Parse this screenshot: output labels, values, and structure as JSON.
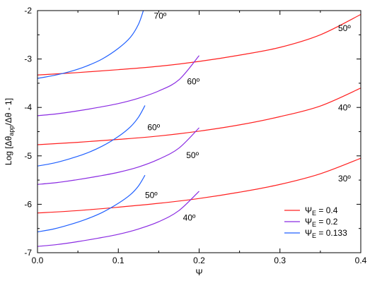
{
  "chart_data": {
    "type": "line",
    "xlabel": "Ψ",
    "ylabel": {
      "prefix": "Log [Δθ",
      "sub": "app",
      "suffix": "/Δθ - 1]"
    },
    "xlim": [
      0.0,
      0.4
    ],
    "ylim": [
      -7,
      -2
    ],
    "xticks": [
      {
        "value": 0.0,
        "label": "0.0"
      },
      {
        "value": 0.1,
        "label": "0.1"
      },
      {
        "value": 0.2,
        "label": "0.2"
      },
      {
        "value": 0.3,
        "label": "0.3"
      },
      {
        "value": 0.4,
        "label": "0.4"
      }
    ],
    "yticks": [
      {
        "value": -7,
        "label": "-7"
      },
      {
        "value": -6,
        "label": "-6"
      },
      {
        "value": -5,
        "label": "-5"
      },
      {
        "value": -4,
        "label": "-4"
      },
      {
        "value": -3,
        "label": "-3"
      },
      {
        "value": -2,
        "label": "-2"
      }
    ],
    "grid": false,
    "legend": {
      "position": "bottom-right",
      "entries": [
        {
          "symbol": "Ψ",
          "sub": "E",
          "text": " = 0.4",
          "color": "#ff2020"
        },
        {
          "symbol": "Ψ",
          "sub": "E",
          "text": " = 0.2",
          "color": "#8a2be2"
        },
        {
          "symbol": "Ψ",
          "sub": "E",
          "text": " = 0.133",
          "color": "#2060ff"
        }
      ]
    },
    "series": [
      {
        "group": "ΨE = 0.4",
        "label": "50º",
        "color": "#ff2020",
        "points": [
          [
            0.0,
            -3.33
          ],
          [
            0.05,
            -3.28
          ],
          [
            0.1,
            -3.22
          ],
          [
            0.15,
            -3.15
          ],
          [
            0.2,
            -3.05
          ],
          [
            0.25,
            -2.92
          ],
          [
            0.3,
            -2.76
          ],
          [
            0.35,
            -2.5
          ],
          [
            0.4,
            -2.08
          ]
        ]
      },
      {
        "group": "ΨE = 0.4",
        "label": "40º",
        "color": "#ff2020",
        "points": [
          [
            0.0,
            -4.77
          ],
          [
            0.05,
            -4.72
          ],
          [
            0.1,
            -4.66
          ],
          [
            0.15,
            -4.59
          ],
          [
            0.2,
            -4.49
          ],
          [
            0.25,
            -4.36
          ],
          [
            0.3,
            -4.19
          ],
          [
            0.35,
            -3.97
          ],
          [
            0.4,
            -3.6
          ]
        ]
      },
      {
        "group": "ΨE = 0.4",
        "label": "30º",
        "color": "#ff2020",
        "points": [
          [
            0.0,
            -6.18
          ],
          [
            0.05,
            -6.13
          ],
          [
            0.1,
            -6.06
          ],
          [
            0.15,
            -5.98
          ],
          [
            0.2,
            -5.88
          ],
          [
            0.25,
            -5.75
          ],
          [
            0.3,
            -5.59
          ],
          [
            0.35,
            -5.37
          ],
          [
            0.4,
            -5.05
          ]
        ]
      },
      {
        "group": "ΨE = 0.2",
        "label": "60º",
        "color": "#8a2be2",
        "points": [
          [
            0.0,
            -4.17
          ],
          [
            0.025,
            -4.13
          ],
          [
            0.05,
            -4.07
          ],
          [
            0.075,
            -4.0
          ],
          [
            0.1,
            -3.92
          ],
          [
            0.125,
            -3.81
          ],
          [
            0.15,
            -3.66
          ],
          [
            0.175,
            -3.43
          ],
          [
            0.2,
            -2.93
          ]
        ]
      },
      {
        "group": "ΨE = 0.2",
        "label": "50º",
        "color": "#8a2be2",
        "points": [
          [
            0.0,
            -5.59
          ],
          [
            0.025,
            -5.55
          ],
          [
            0.05,
            -5.49
          ],
          [
            0.075,
            -5.42
          ],
          [
            0.1,
            -5.34
          ],
          [
            0.125,
            -5.23
          ],
          [
            0.15,
            -5.07
          ],
          [
            0.175,
            -4.84
          ],
          [
            0.2,
            -4.42
          ]
        ]
      },
      {
        "group": "ΨE = 0.2",
        "label": "40º",
        "color": "#8a2be2",
        "points": [
          [
            0.0,
            -6.87
          ],
          [
            0.025,
            -6.83
          ],
          [
            0.05,
            -6.77
          ],
          [
            0.075,
            -6.7
          ],
          [
            0.1,
            -6.62
          ],
          [
            0.125,
            -6.51
          ],
          [
            0.15,
            -6.36
          ],
          [
            0.175,
            -6.13
          ],
          [
            0.2,
            -5.73
          ]
        ]
      },
      {
        "group": "ΨE = 0.133",
        "label": "70º",
        "color": "#2060ff",
        "points": [
          [
            0.0,
            -3.4
          ],
          [
            0.02,
            -3.34
          ],
          [
            0.04,
            -3.26
          ],
          [
            0.06,
            -3.15
          ],
          [
            0.08,
            -3.0
          ],
          [
            0.1,
            -2.78
          ],
          [
            0.115,
            -2.55
          ],
          [
            0.125,
            -2.28
          ],
          [
            0.131,
            -2.0
          ]
        ]
      },
      {
        "group": "ΨE = 0.133",
        "label": "60º",
        "color": "#2060ff",
        "points": [
          [
            0.0,
            -5.21
          ],
          [
            0.02,
            -5.15
          ],
          [
            0.04,
            -5.06
          ],
          [
            0.06,
            -4.95
          ],
          [
            0.08,
            -4.8
          ],
          [
            0.1,
            -4.6
          ],
          [
            0.115,
            -4.4
          ],
          [
            0.125,
            -4.2
          ],
          [
            0.133,
            -3.96
          ]
        ]
      },
      {
        "group": "ΨE = 0.133",
        "label": "50º",
        "color": "#2060ff",
        "points": [
          [
            0.0,
            -6.57
          ],
          [
            0.02,
            -6.51
          ],
          [
            0.04,
            -6.42
          ],
          [
            0.06,
            -6.31
          ],
          [
            0.08,
            -6.17
          ],
          [
            0.1,
            -5.98
          ],
          [
            0.115,
            -5.8
          ],
          [
            0.125,
            -5.62
          ],
          [
            0.133,
            -5.4
          ]
        ]
      }
    ],
    "annotations": [
      {
        "text": "70º",
        "x": 0.144,
        "y": -2.17
      },
      {
        "text": "50º",
        "x": 0.372,
        "y": -2.42
      },
      {
        "text": "60º",
        "x": 0.185,
        "y": -3.52
      },
      {
        "text": "60º",
        "x": 0.136,
        "y": -4.47
      },
      {
        "text": "40º",
        "x": 0.372,
        "y": -4.06
      },
      {
        "text": "50º",
        "x": 0.184,
        "y": -5.05
      },
      {
        "text": "30º",
        "x": 0.372,
        "y": -5.53
      },
      {
        "text": "50º",
        "x": 0.133,
        "y": -5.87
      },
      {
        "text": "40º",
        "x": 0.18,
        "y": -6.34
      }
    ]
  }
}
